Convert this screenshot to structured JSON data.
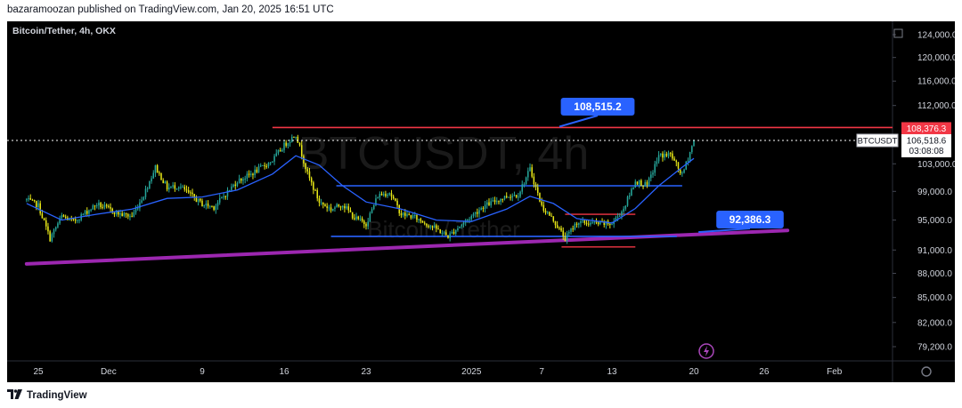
{
  "header": {
    "publisher_line": "bazaramoozan published on TradingView.com, Jan 20, 2025 16:51 UTC"
  },
  "footer": {
    "brand": "TradingView"
  },
  "colors": {
    "background": "#000000",
    "up_candle": "#26a69a",
    "down_candle": "#e8e817",
    "ema_line": "#2962ff",
    "resistance_line": "#f23645",
    "support_trendline": "#9c27b0",
    "box_line": "#2962ff",
    "label_bg": "#2962ff",
    "axis_text": "#d1d4dc",
    "price_label_red": "#f23645"
  },
  "chart_data": {
    "type": "candlestick",
    "symbol_title": "Bitcoin/Tether, 4h, OKX",
    "watermark": {
      "symbol": "BTCUSDT, 4h",
      "name": "Bitcoin / Tether"
    },
    "y_axis": {
      "scale": "log",
      "ticks": [
        {
          "value": 124000,
          "label": "124,000.0"
        },
        {
          "value": 120000,
          "label": "120,000.0"
        },
        {
          "value": 116000,
          "label": "116,000.0"
        },
        {
          "value": 112000,
          "label": "112,000.0"
        },
        {
          "value": 103000,
          "label": "103,000.0"
        },
        {
          "value": 99000,
          "label": "99,000.0"
        },
        {
          "value": 95000,
          "label": "95,000.0"
        },
        {
          "value": 91000,
          "label": "91,000.0"
        },
        {
          "value": 88000,
          "label": "88,000.0"
        },
        {
          "value": 85000,
          "label": "85,000.0"
        },
        {
          "value": 82000,
          "label": "82,000.0"
        },
        {
          "value": 79200,
          "label": "79,200.0"
        }
      ]
    },
    "x_axis": {
      "ticks": [
        {
          "date": "2024-11-25",
          "label": "25"
        },
        {
          "date": "2024-12-01",
          "label": "Dec"
        },
        {
          "date": "2024-12-09",
          "label": "9"
        },
        {
          "date": "2024-12-16",
          "label": "16"
        },
        {
          "date": "2024-12-23",
          "label": "23"
        },
        {
          "date": "2025-01-01",
          "label": "2025"
        },
        {
          "date": "2025-01-07",
          "label": "7"
        },
        {
          "date": "2025-01-13",
          "label": "13"
        },
        {
          "date": "2025-01-20",
          "label": "20"
        },
        {
          "date": "2025-01-26",
          "label": "26"
        },
        {
          "date": "2025-02-01",
          "label": "Feb"
        }
      ]
    },
    "price_path": [
      [
        "2024-11-24",
        97800
      ],
      [
        "2024-11-25",
        97000
      ],
      [
        "2024-11-26",
        92500
      ],
      [
        "2024-11-27",
        95500
      ],
      [
        "2024-11-28",
        94800
      ],
      [
        "2024-11-30",
        97200
      ],
      [
        "2024-12-02",
        95800
      ],
      [
        "2024-12-03",
        95500
      ],
      [
        "2024-12-04",
        98500
      ],
      [
        "2024-12-05",
        102500
      ],
      [
        "2024-12-06",
        99500
      ],
      [
        "2024-12-07",
        99800
      ],
      [
        "2024-12-09",
        97200
      ],
      [
        "2024-12-10",
        96800
      ],
      [
        "2024-12-12",
        100500
      ],
      [
        "2024-12-13",
        101300
      ],
      [
        "2024-12-15",
        103500
      ],
      [
        "2024-12-16",
        105800
      ],
      [
        "2024-12-17",
        107500
      ],
      [
        "2024-12-18",
        101500
      ],
      [
        "2024-12-19",
        97500
      ],
      [
        "2024-12-20",
        96500
      ],
      [
        "2024-12-21",
        97200
      ],
      [
        "2024-12-22",
        95300
      ],
      [
        "2024-12-23",
        94500
      ],
      [
        "2024-12-24",
        98400
      ],
      [
        "2024-12-25",
        98900
      ],
      [
        "2024-12-26",
        95800
      ],
      [
        "2024-12-27",
        95500
      ],
      [
        "2024-12-29",
        93800
      ],
      [
        "2024-12-30",
        92800
      ],
      [
        "2024-12-31",
        94200
      ],
      [
        "2025-01-02",
        96900
      ],
      [
        "2025-01-04",
        98300
      ],
      [
        "2025-01-05",
        98600
      ],
      [
        "2025-01-06",
        102200
      ],
      [
        "2025-01-07",
        96900
      ],
      [
        "2025-01-08",
        95000
      ],
      [
        "2025-01-09",
        92500
      ],
      [
        "2025-01-10",
        94700
      ],
      [
        "2025-01-11",
        94600
      ],
      [
        "2025-01-12",
        94500
      ],
      [
        "2025-01-13",
        94500
      ],
      [
        "2025-01-14",
        96600
      ],
      [
        "2025-01-15",
        100500
      ],
      [
        "2025-01-16",
        99800
      ],
      [
        "2025-01-17",
        104200
      ],
      [
        "2025-01-18",
        104400
      ],
      [
        "2025-01-19",
        101300
      ],
      [
        "2025-01-20",
        106518.6
      ]
    ],
    "ema": [
      [
        "2024-11-24",
        97300
      ],
      [
        "2024-11-27",
        95000
      ],
      [
        "2024-11-30",
        95800
      ],
      [
        "2024-12-03",
        96500
      ],
      [
        "2024-12-06",
        98000
      ],
      [
        "2024-12-09",
        98200
      ],
      [
        "2024-12-12",
        99200
      ],
      [
        "2024-12-15",
        101500
      ],
      [
        "2024-12-17",
        104200
      ],
      [
        "2024-12-19",
        102800
      ],
      [
        "2024-12-21",
        99800
      ],
      [
        "2024-12-23",
        97500
      ],
      [
        "2024-12-26",
        96500
      ],
      [
        "2024-12-29",
        95000
      ],
      [
        "2025-01-01",
        94800
      ],
      [
        "2025-01-04",
        96500
      ],
      [
        "2025-01-06",
        98300
      ],
      [
        "2025-01-08",
        97300
      ],
      [
        "2025-01-10",
        95200
      ],
      [
        "2025-01-13",
        94600
      ],
      [
        "2025-01-15",
        96600
      ],
      [
        "2025-01-17",
        99800
      ],
      [
        "2025-01-19",
        102500
      ],
      [
        "2025-01-20",
        103800
      ]
    ],
    "annotations": {
      "resistance": {
        "price": 108515.2,
        "from": "2024-12-15",
        "label": "108,515.2"
      },
      "support_trendline": {
        "from": [
          "2024-11-24",
          89200
        ],
        "to": [
          "2025-01-28",
          93600
        ],
        "label": "92,386.3"
      },
      "range_box": {
        "from": "2024-12-20",
        "to": "2025-01-19",
        "top": 99800,
        "bottom": 92800
      },
      "inner_box": {
        "from": "2025-01-09",
        "to": "2025-01-15",
        "top": 95800,
        "bottom": 91400
      }
    },
    "price_labels": [
      {
        "value": 108376.3,
        "text": "108,376.3",
        "style": "red"
      },
      {
        "value": 106518.6,
        "text": "106,518.6",
        "style": "white",
        "sub": "03:08:08"
      }
    ],
    "symbol_tag": "BTCUSDT",
    "last_price": 106518.6
  }
}
